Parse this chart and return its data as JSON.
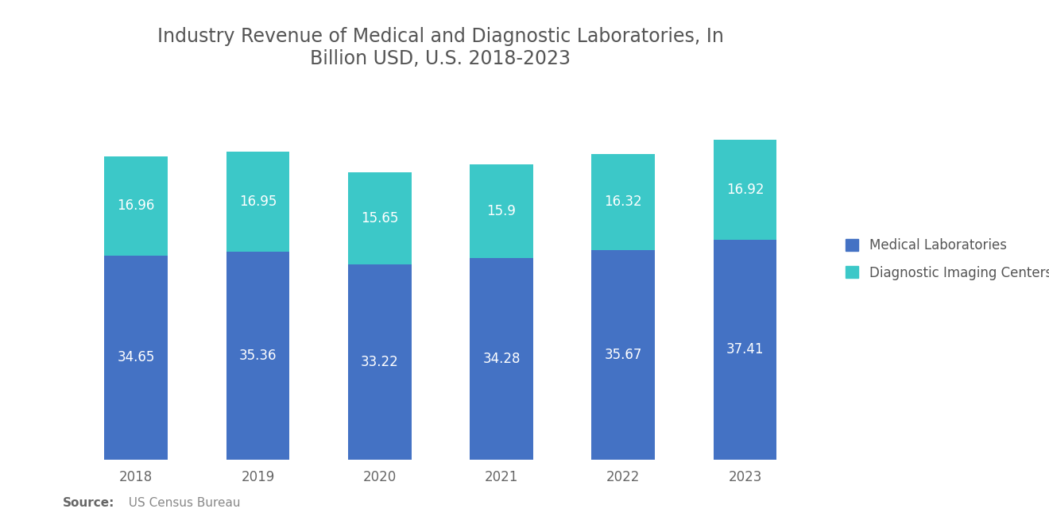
{
  "title_line1": "Industry Revenue of Medical and Diagnostic Laboratories, In",
  "title_line2": "Billion USD, U.S. 2018-2023",
  "years": [
    "2018",
    "2019",
    "2020",
    "2021",
    "2022",
    "2023"
  ],
  "medical_labs": [
    34.65,
    35.36,
    33.22,
    34.28,
    35.67,
    37.41
  ],
  "diagnostic_imaging": [
    16.96,
    16.95,
    15.65,
    15.9,
    16.32,
    16.92
  ],
  "bar_color_medical": "#4472C4",
  "bar_color_diagnostic": "#3CC8C8",
  "background_color": "#FFFFFF",
  "title_fontsize": 17,
  "label_fontsize": 12,
  "tick_fontsize": 12,
  "legend_labels": [
    "Medical Laboratories",
    "Diagnostic Imaging Centers"
  ],
  "source_bold": "Source:",
  "source_normal": "  US Census Bureau",
  "bar_width": 0.52,
  "ylim": [
    0,
    62
  ]
}
